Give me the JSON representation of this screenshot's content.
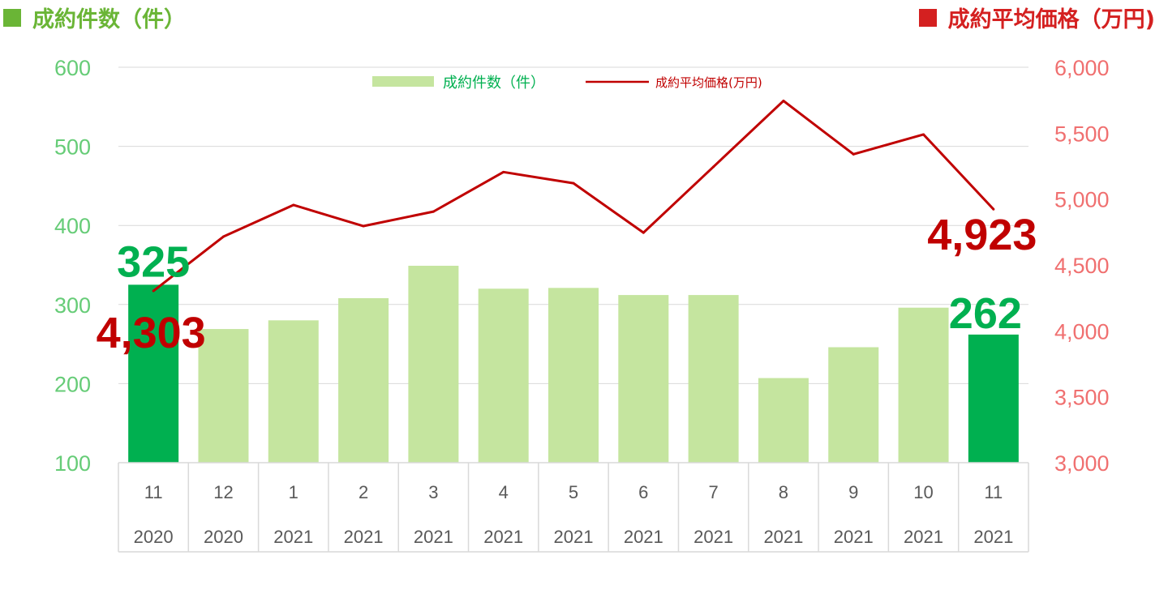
{
  "header": {
    "left_title": "成約件数（件）",
    "right_title": "成約平均価格（万円)",
    "left_color": "#6ab536",
    "right_color": "#d42020"
  },
  "chart_data": {
    "type": "bar",
    "categories": [
      "11",
      "12",
      "1",
      "2",
      "3",
      "4",
      "5",
      "6",
      "7",
      "8",
      "9",
      "10",
      "11"
    ],
    "years": [
      "2020",
      "2020",
      "2021",
      "2021",
      "2021",
      "2021",
      "2021",
      "2021",
      "2021",
      "2021",
      "2021",
      "2021",
      "2021"
    ],
    "series": [
      {
        "name": "成約件数（件）",
        "type": "bar",
        "axis": "left",
        "values": [
          325,
          269,
          280,
          308,
          349,
          320,
          321,
          312,
          312,
          207,
          246,
          296,
          262
        ],
        "color": "#c5e59f",
        "highlight_color": "#00b050",
        "highlight_indices": [
          0,
          12
        ]
      },
      {
        "name": "成約平均価格(万円)",
        "type": "line",
        "axis": "right",
        "values": [
          4303,
          4715,
          4955,
          4795,
          4905,
          5205,
          5120,
          4745,
          5245,
          5745,
          5340,
          5490,
          4923
        ],
        "color": "#c00000"
      }
    ],
    "y_left": {
      "lim": [
        100,
        600
      ],
      "ticks": [
        "100",
        "200",
        "300",
        "400",
        "500",
        "600"
      ],
      "color": "#66cc77"
    },
    "y_right": {
      "lim": [
        3000,
        6000
      ],
      "ticks": [
        "3,000",
        "3,500",
        "4,000",
        "4,500",
        "5,000",
        "5,500",
        "6,000"
      ],
      "color": "#f07070"
    },
    "legend": {
      "position": "top-center",
      "bar_label": "成約件数（件）",
      "line_label": "成約平均価格(万円)"
    },
    "annotations": [
      {
        "text": "325",
        "series": 0,
        "index": 0,
        "color": "#00b050"
      },
      {
        "text": "262",
        "series": 0,
        "index": 12,
        "color": "#00b050"
      },
      {
        "text": "4,303",
        "series": 1,
        "index": 0,
        "color": "#c00000"
      },
      {
        "text": "4,923",
        "series": 1,
        "index": 12,
        "color": "#c00000"
      }
    ],
    "grid": true
  }
}
